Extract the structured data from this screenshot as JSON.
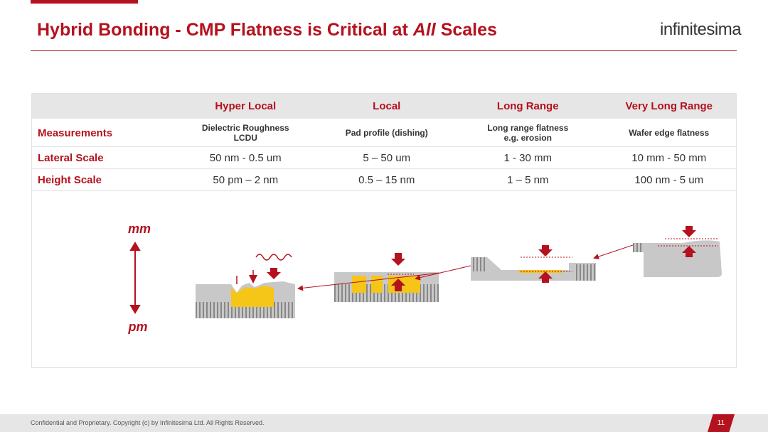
{
  "header": {
    "title_start": "Hybrid Bonding - CMP Flatness is Critical at ",
    "title_emphasis": "All",
    "title_end": " Scales",
    "logo": "infinitesima"
  },
  "table": {
    "columns": [
      "Hyper Local",
      "Local",
      "Long Range",
      "Very Long Range"
    ],
    "rows": [
      {
        "label": "Measurements",
        "cells": [
          [
            "Dielectric Roughness",
            "LCDU"
          ],
          [
            "Pad profile (dishing)"
          ],
          [
            "Long range flatness",
            "e.g. erosion"
          ],
          [
            "Wafer edge flatness"
          ]
        ]
      },
      {
        "label": "Lateral Scale",
        "cells": [
          [
            "50 nm - 0.5 um"
          ],
          [
            "5 – 50 um"
          ],
          [
            "1 - 30 mm"
          ],
          [
            "10 mm - 50 mm"
          ]
        ]
      },
      {
        "label": "Height Scale",
        "cells": [
          [
            "50 pm – 2 nm"
          ],
          [
            "0.5 – 15 nm"
          ],
          [
            "1 – 5 nm"
          ],
          [
            "100 nm - 5 um"
          ]
        ]
      }
    ]
  },
  "diagram": {
    "top_label": "mm",
    "bottom_label": "pm"
  },
  "footer": {
    "text": "Confidential and Proprietary. Copyright (c) by Infinitesima Ltd. All Rights Reserved.",
    "page": "11"
  }
}
